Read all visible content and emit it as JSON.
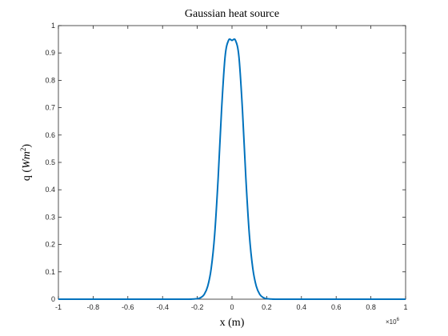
{
  "chart_data": {
    "type": "line",
    "title": "Gaussian heat source",
    "xlabel": "x (m)",
    "ylabel_main": "q (",
    "ylabel_W": "W",
    "ylabel_m": "m",
    "ylabel_sup": "2",
    "ylabel_close": ")",
    "x_exponent_label": "×10",
    "x_exponent_power": "6",
    "xlim": [
      -1,
      1
    ],
    "ylim": [
      0,
      1
    ],
    "xticks": [
      -1,
      -0.8,
      -0.6,
      -0.4,
      -0.2,
      0,
      0.2,
      0.4,
      0.6,
      0.8,
      1
    ],
    "xtick_labels": [
      "-1",
      "-0.8",
      "-0.6",
      "-0.4",
      "-0.2",
      "0",
      "0.2",
      "0.4",
      "0.6",
      "0.8",
      "1"
    ],
    "yticks": [
      0,
      0.1,
      0.2,
      0.3,
      0.4,
      0.5,
      0.6,
      0.7,
      0.8,
      0.9,
      1
    ],
    "ytick_labels": [
      "0",
      "0.1",
      "0.2",
      "0.3",
      "0.4",
      "0.5",
      "0.6",
      "0.7",
      "0.8",
      "0.9",
      "1"
    ],
    "grid": false,
    "series": [
      {
        "color": "#0072BD",
        "x": [
          -1,
          -0.3,
          -0.25,
          -0.2,
          -0.18,
          -0.16,
          -0.14,
          -0.12,
          -0.1,
          -0.08,
          -0.06,
          -0.04,
          -0.02,
          0,
          0.02,
          0.04,
          0.06,
          0.08,
          0.1,
          0.12,
          0.14,
          0.16,
          0.18,
          0.2,
          0.25,
          0.3,
          1
        ],
        "y": [
          0,
          0,
          0,
          0.0017,
          0.0058,
          0.0175,
          0.047,
          0.1114,
          0.2354,
          0.4404,
          0.6938,
          0.8854,
          0.946,
          0.946,
          0.946,
          0.8854,
          0.6938,
          0.4404,
          0.2354,
          0.1114,
          0.047,
          0.0175,
          0.0058,
          0.0017,
          0,
          0,
          0
        ]
      }
    ]
  }
}
